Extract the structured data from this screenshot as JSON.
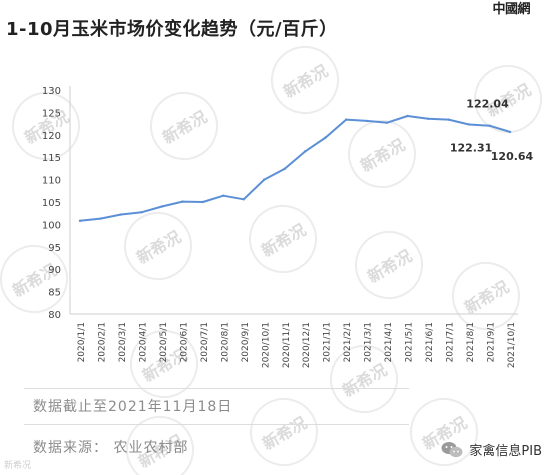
{
  "header": {
    "logo_text": "中國網",
    "title": "1-10月玉米市场价变化趋势（元/百斤）"
  },
  "watermark_text": "新希况",
  "chart_data": {
    "type": "line",
    "title": "1-10月玉米市场价变化趋势（元/百斤）",
    "xlabel": "",
    "ylabel": "",
    "ylim": [
      80,
      130
    ],
    "yticks": [
      80,
      85,
      90,
      95,
      100,
      105,
      110,
      115,
      120,
      125,
      130
    ],
    "grid": false,
    "color": "#5b8fd6",
    "x": [
      "2020/1/1",
      "2020/2/1",
      "2020/3/1",
      "2020/4/1",
      "2020/5/1",
      "2020/6/1",
      "2020/7/1",
      "2020/8/1",
      "2020/9/1",
      "2020/10/1",
      "2020/11/1",
      "2020/12/1",
      "2021/1/1",
      "2021/2/1",
      "2021/3/1",
      "2021/4/1",
      "2021/5/1",
      "2021/6/1",
      "2021/7/1",
      "2021/8/1",
      "2021/9/1",
      "2021/10/1"
    ],
    "series": [
      {
        "values": [
          100.8,
          101.3,
          102.2,
          102.7,
          104.0,
          105.1,
          105.0,
          106.4,
          105.6,
          110.0,
          112.4,
          116.3,
          119.4,
          123.4,
          123.1,
          122.7,
          124.2,
          123.6,
          123.4,
          122.31,
          122.04,
          120.64
        ]
      }
    ],
    "annotations": [
      "122.04",
      "122.31",
      "120.64"
    ]
  },
  "notes": {
    "cutoff": "数据截止至2021年11月18日",
    "source": "数据来源： 农业农村部"
  },
  "footer": {
    "wechat_label": "家禽信息PIB",
    "bottom_mark": "新希况"
  }
}
